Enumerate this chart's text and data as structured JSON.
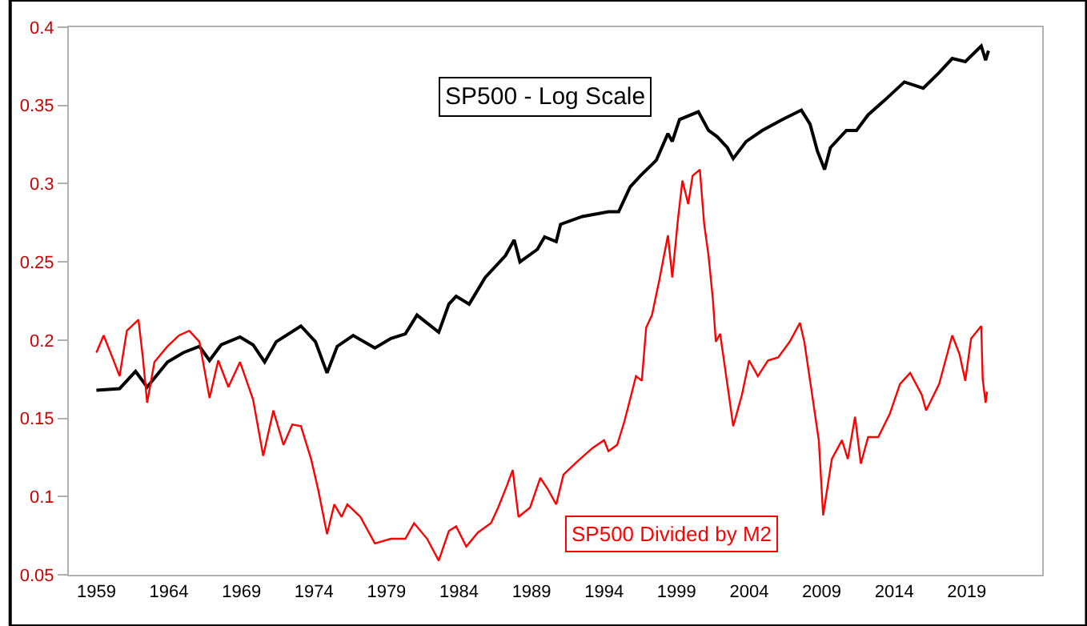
{
  "chart_data": {
    "type": "line",
    "xlim": [
      1957.1,
      2024.2
    ],
    "xticks": [
      1959,
      1964,
      1969,
      1974,
      1979,
      1984,
      1989,
      1994,
      1999,
      2004,
      2009,
      2014,
      2019
    ],
    "ylim": [
      0.05,
      0.4
    ],
    "yticks": [
      0.05,
      0.1,
      0.15,
      0.2,
      0.25,
      0.3,
      0.35,
      0.4
    ],
    "legend": false,
    "line_style": "solid",
    "marker": "none",
    "series": [
      {
        "name": "SP500 - Log Scale",
        "color": "#000000",
        "x": [
          1959,
          1960.6,
          1961.7,
          1962.5,
          1963.9,
          1965,
          1966.1,
          1966.8,
          1967.6,
          1968.9,
          1969.8,
          1970.6,
          1971.4,
          1973.1,
          1974.1,
          1974.9,
          1975.6,
          1976.7,
          1978.2,
          1979.3,
          1980.3,
          1981.1,
          1982.6,
          1983.3,
          1983.8,
          1984.7,
          1985.8,
          1987.2,
          1987.8,
          1988.2,
          1989.4,
          1989.9,
          1990.7,
          1991.0,
          1992.5,
          1994.3,
          1995,
          1995.8,
          1996.5,
          1997.6,
          1998.4,
          1998.7,
          1999.2,
          2000.5,
          2001.2,
          2001.8,
          2002.5,
          2002.9,
          2003.8,
          2004.9,
          2006.3,
          2007.6,
          2008.2,
          2008.7,
          2009.2,
          2009.6,
          2010.7,
          2011.4,
          2012.2,
          2013.3,
          2014.7,
          2016,
          2017.1,
          2018,
          2018.9,
          2020,
          2020.3,
          2020.5
        ],
        "values": [
          0.168,
          0.169,
          0.18,
          0.17,
          0.186,
          0.192,
          0.196,
          0.187,
          0.197,
          0.202,
          0.197,
          0.186,
          0.199,
          0.209,
          0.199,
          0.179,
          0.196,
          0.203,
          0.195,
          0.201,
          0.204,
          0.216,
          0.205,
          0.223,
          0.228,
          0.223,
          0.24,
          0.254,
          0.264,
          0.25,
          0.258,
          0.266,
          0.263,
          0.274,
          0.279,
          0.282,
          0.282,
          0.298,
          0.305,
          0.315,
          0.332,
          0.327,
          0.341,
          0.346,
          0.334,
          0.33,
          0.323,
          0.316,
          0.327,
          0.334,
          0.341,
          0.347,
          0.338,
          0.321,
          0.309,
          0.323,
          0.334,
          0.334,
          0.344,
          0.353,
          0.365,
          0.361,
          0.371,
          0.38,
          0.378,
          0.388,
          0.379,
          0.385
        ]
      },
      {
        "name": "SP500 Divided by M2",
        "color": "#ff0000",
        "x": [
          1959,
          1959.5,
          1960.1,
          1960.6,
          1961.1,
          1961.9,
          1962.2,
          1962.5,
          1963,
          1963.9,
          1964.7,
          1965.4,
          1966.1,
          1966.8,
          1967.4,
          1968.1,
          1968.9,
          1969.8,
          1970.5,
          1971.2,
          1971.9,
          1972.5,
          1973.1,
          1973.8,
          1974.3,
          1974.9,
          1975.4,
          1975.9,
          1976.3,
          1977.2,
          1978.2,
          1979.3,
          1980.3,
          1980.9,
          1981.8,
          1982.6,
          1983.3,
          1983.8,
          1984.5,
          1985.3,
          1986.2,
          1986.7,
          1987.3,
          1987.7,
          1988.1,
          1988.9,
          1989.6,
          1990.1,
          1990.7,
          1991.2,
          1992.1,
          1993.2,
          1994.0,
          1994.3,
          1994.9,
          1995.4,
          1996.2,
          1996.6,
          1996.9,
          1997.3,
          1997.8,
          1998.4,
          1998.7,
          1999.1,
          1999.4,
          1999.8,
          2000.1,
          2000.6,
          2000.9,
          2001.2,
          2001.5,
          2001.7,
          2002.0,
          2002.6,
          2002.9,
          2003.5,
          2004.0,
          2004.6,
          2005.3,
          2006.0,
          2006.8,
          2007.5,
          2007.8,
          2008.2,
          2008.8,
          2009.1,
          2009.7,
          2010.4,
          2010.8,
          2011.3,
          2011.7,
          2012.2,
          2012.9,
          2013.7,
          2014.4,
          2015.1,
          2015.9,
          2016.2,
          2017.1,
          2018.0,
          2018.5,
          2018.9,
          2019.3,
          2020.0,
          2020.1,
          2020.3,
          2020.4
        ],
        "values": [
          0.192,
          0.203,
          0.189,
          0.177,
          0.206,
          0.213,
          0.189,
          0.16,
          0.186,
          0.196,
          0.203,
          0.206,
          0.199,
          0.163,
          0.187,
          0.17,
          0.186,
          0.162,
          0.126,
          0.155,
          0.133,
          0.146,
          0.145,
          0.124,
          0.104,
          0.076,
          0.095,
          0.087,
          0.095,
          0.087,
          0.07,
          0.073,
          0.073,
          0.083,
          0.073,
          0.059,
          0.078,
          0.081,
          0.068,
          0.077,
          0.083,
          0.093,
          0.107,
          0.117,
          0.087,
          0.093,
          0.112,
          0.105,
          0.095,
          0.114,
          0.122,
          0.131,
          0.136,
          0.129,
          0.133,
          0.148,
          0.177,
          0.174,
          0.208,
          0.216,
          0.238,
          0.267,
          0.24,
          0.278,
          0.302,
          0.287,
          0.305,
          0.309,
          0.274,
          0.254,
          0.226,
          0.199,
          0.204,
          0.165,
          0.145,
          0.165,
          0.187,
          0.177,
          0.187,
          0.189,
          0.199,
          0.211,
          0.199,
          0.174,
          0.136,
          0.088,
          0.124,
          0.136,
          0.124,
          0.151,
          0.121,
          0.138,
          0.138,
          0.153,
          0.172,
          0.179,
          0.165,
          0.155,
          0.172,
          0.203,
          0.191,
          0.174,
          0.201,
          0.209,
          0.175,
          0.16,
          0.167
        ]
      }
    ]
  }
}
